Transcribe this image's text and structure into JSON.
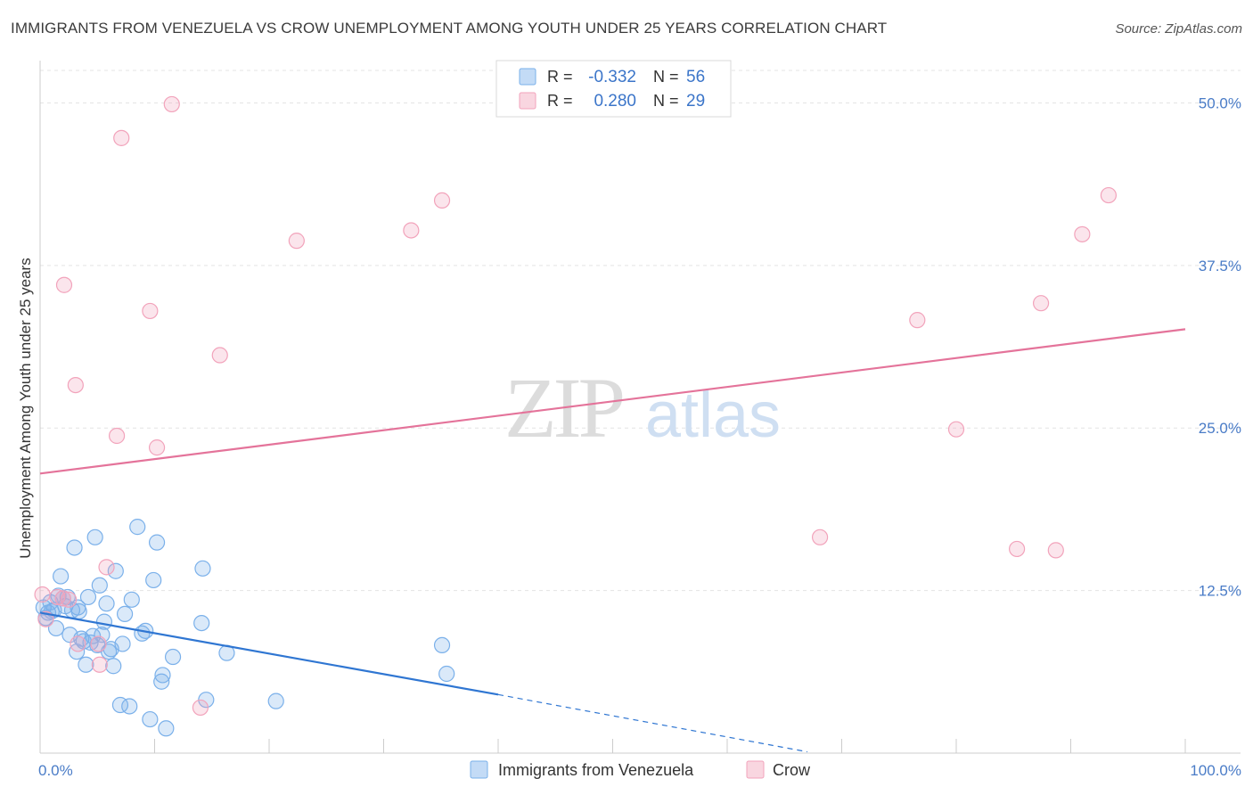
{
  "chart_data": {
    "type": "scatter",
    "title": "IMMIGRANTS FROM VENEZUELA VS CROW UNEMPLOYMENT AMONG YOUTH UNDER 25 YEARS CORRELATION CHART",
    "source": "Source: ZipAtlas.com",
    "xlabel": "",
    "ylabel": "Unemployment Among Youth under 25 years",
    "xlim": [
      0,
      100
    ],
    "ylim": [
      0,
      52.5
    ],
    "x_tick_labels": [
      {
        "value": 0,
        "label": "0.0%"
      },
      {
        "value": 100,
        "label": "100.0%"
      }
    ],
    "y_tick_labels": [
      {
        "value": 12.5,
        "label": "12.5%"
      },
      {
        "value": 25.0,
        "label": "25.0%"
      },
      {
        "value": 37.5,
        "label": "37.5%"
      },
      {
        "value": 50.0,
        "label": "50.0%"
      }
    ],
    "watermark": {
      "zip": "ZIP",
      "atlas": "atlas"
    },
    "legend_stats": [
      {
        "r_label": "R =",
        "r_value": "-0.332",
        "n_label": "N =",
        "n_value": "56"
      },
      {
        "r_label": "R =",
        "r_value": "0.280",
        "n_label": "N =",
        "n_value": "29"
      }
    ],
    "series": [
      {
        "name": "Immigrants from Venezuela",
        "color": "#7ab0ea",
        "line_color": "#2f76d2",
        "trend": {
          "x0": 0,
          "y0": 10.8,
          "x1": 40,
          "y1": 4.5,
          "dash_to_x": 67,
          "dash_to_y": 0.1
        },
        "points": [
          [
            0.3,
            11.2
          ],
          [
            0.5,
            10.4
          ],
          [
            0.7,
            10.8
          ],
          [
            0.9,
            11.6
          ],
          [
            1.2,
            11.0
          ],
          [
            1.4,
            9.6
          ],
          [
            1.6,
            12.1
          ],
          [
            1.8,
            13.6
          ],
          [
            2.0,
            11.9
          ],
          [
            2.2,
            11.3
          ],
          [
            2.4,
            12.0
          ],
          [
            2.6,
            9.1
          ],
          [
            2.8,
            11.0
          ],
          [
            3.0,
            15.8
          ],
          [
            3.2,
            7.8
          ],
          [
            3.4,
            10.9
          ],
          [
            3.6,
            8.8
          ],
          [
            3.8,
            8.6
          ],
          [
            4.0,
            6.8
          ],
          [
            4.2,
            12.0
          ],
          [
            4.4,
            8.5
          ],
          [
            4.6,
            9.0
          ],
          [
            4.8,
            16.6
          ],
          [
            5.0,
            8.3
          ],
          [
            5.2,
            12.9
          ],
          [
            5.4,
            9.1
          ],
          [
            5.6,
            10.1
          ],
          [
            5.8,
            11.5
          ],
          [
            6.0,
            7.8
          ],
          [
            6.2,
            8.0
          ],
          [
            6.4,
            6.7
          ],
          [
            6.6,
            14.0
          ],
          [
            7.0,
            3.7
          ],
          [
            7.4,
            10.7
          ],
          [
            7.8,
            3.6
          ],
          [
            8.0,
            11.8
          ],
          [
            8.5,
            17.4
          ],
          [
            8.9,
            9.2
          ],
          [
            9.2,
            9.4
          ],
          [
            9.6,
            2.6
          ],
          [
            9.9,
            13.3
          ],
          [
            10.2,
            16.2
          ],
          [
            10.6,
            5.5
          ],
          [
            10.7,
            6.0
          ],
          [
            11.0,
            1.9
          ],
          [
            11.6,
            7.4
          ],
          [
            14.2,
            14.2
          ],
          [
            14.1,
            10.0
          ],
          [
            14.5,
            4.1
          ],
          [
            16.3,
            7.7
          ],
          [
            20.6,
            4.0
          ],
          [
            35.1,
            8.3
          ],
          [
            35.5,
            6.1
          ],
          [
            3.3,
            11.2
          ],
          [
            7.2,
            8.4
          ],
          [
            1.0,
            10.9
          ]
        ]
      },
      {
        "name": "Crow",
        "color": "#f2a3bb",
        "line_color": "#e4739a",
        "trend": {
          "x0": 0,
          "y0": 21.5,
          "x1": 100,
          "y1": 32.6
        },
        "points": [
          [
            0.2,
            12.2
          ],
          [
            0.5,
            10.3
          ],
          [
            1.5,
            12.0
          ],
          [
            2.1,
            36.0
          ],
          [
            2.5,
            11.8
          ],
          [
            3.1,
            28.3
          ],
          [
            3.3,
            8.4
          ],
          [
            5.1,
            8.4
          ],
          [
            5.8,
            14.3
          ],
          [
            5.2,
            6.8
          ],
          [
            6.7,
            24.4
          ],
          [
            7.1,
            47.3
          ],
          [
            9.6,
            34.0
          ],
          [
            10.2,
            23.5
          ],
          [
            11.5,
            49.9
          ],
          [
            14.0,
            3.5
          ],
          [
            15.7,
            30.6
          ],
          [
            22.4,
            39.4
          ],
          [
            32.4,
            40.2
          ],
          [
            35.1,
            42.5
          ],
          [
            68.1,
            16.6
          ],
          [
            76.6,
            33.3
          ],
          [
            80.0,
            24.9
          ],
          [
            85.3,
            15.7
          ],
          [
            87.4,
            34.6
          ],
          [
            88.7,
            15.6
          ],
          [
            91.0,
            39.9
          ],
          [
            93.3,
            42.9
          ],
          [
            2.0,
            11.9
          ]
        ]
      }
    ]
  }
}
